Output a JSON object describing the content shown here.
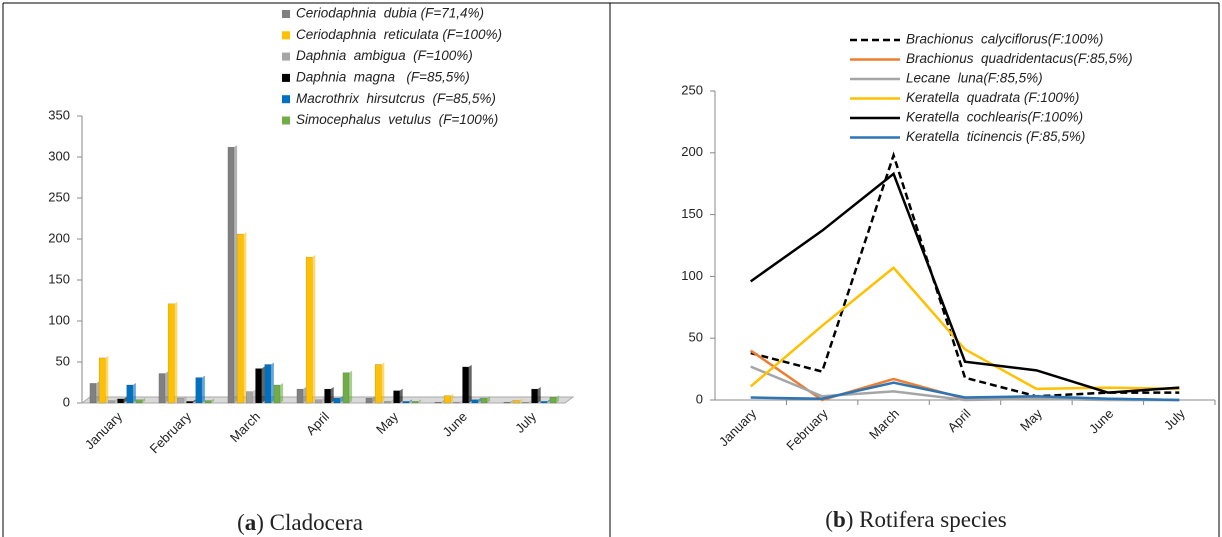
{
  "chart_data": [
    {
      "type": "bar",
      "caption": [
        "(",
        "a",
        ") Cladocera"
      ],
      "caption_bold": 1,
      "categories": [
        "January",
        "February",
        "March",
        "April",
        "May",
        "June",
        "July"
      ],
      "ylim": [
        0,
        350
      ],
      "yticks": [
        0,
        50,
        100,
        150,
        200,
        250,
        300,
        350
      ],
      "grid": false,
      "legend": "top-right",
      "series": [
        {
          "name": "Ceriodaphnia  dubia (F=71,4%)",
          "color": "#808080",
          "values": [
            24,
            36,
            312,
            17,
            6,
            1,
            1
          ]
        },
        {
          "name": "Ceriodaphnia  reticulata (F=100%)",
          "color": "#ffc000",
          "values": [
            55,
            121,
            206,
            178,
            47,
            9,
            3
          ]
        },
        {
          "name": "Daphnia  ambigua  (F=100%)",
          "color": "#a5a5a5",
          "values": [
            3,
            6,
            14,
            4,
            2,
            1,
            1
          ]
        },
        {
          "name": "Daphnia  magna   (F=85,5%)",
          "color": "#000000",
          "values": [
            5,
            2,
            42,
            17,
            15,
            44,
            17
          ]
        },
        {
          "name": "Macrothrix  hirsutcrus  (F=85,5%)",
          "color": "#0070c0",
          "values": [
            22,
            31,
            47,
            6,
            2,
            4,
            2
          ]
        },
        {
          "name": "Simocephalus  vetulus  (F=100%)",
          "color": "#70ad47",
          "values": [
            4,
            3,
            22,
            37,
            2,
            6,
            7
          ]
        }
      ]
    },
    {
      "type": "line",
      "caption": [
        "(",
        "b",
        ") Rotifera species"
      ],
      "caption_bold": 1,
      "categories": [
        "January",
        "February",
        "March",
        "April",
        "May",
        "June",
        "July"
      ],
      "ylim": [
        0,
        250
      ],
      "yticks": [
        0,
        50,
        100,
        150,
        200,
        250
      ],
      "grid": false,
      "legend": "top-right",
      "series": [
        {
          "name": "Brachionus  calyciflorus(F:100%)",
          "color": "#000000",
          "style": "dashed",
          "values": [
            38,
            23,
            198,
            18,
            3,
            6,
            6
          ]
        },
        {
          "name": "Brachionus  quadridentacus(F:85,5%)",
          "color": "#ed7d31",
          "values": [
            40,
            0,
            17,
            1,
            2,
            1,
            0
          ]
        },
        {
          "name": "Lecane  luna(F:85,5%)",
          "color": "#a5a5a5",
          "values": [
            27,
            3,
            7,
            0,
            1,
            0,
            0
          ]
        },
        {
          "name": "Keratella  quadrata (F:100%)",
          "color": "#ffc000",
          "values": [
            11,
            60,
            107,
            41,
            9,
            10,
            9
          ]
        },
        {
          "name": "Keratella  cochlearis(F:100%)",
          "color": "#000000",
          "values": [
            96,
            137,
            183,
            31,
            24,
            6,
            10
          ]
        },
        {
          "name": "Keratella  ticinencis (F:85,5%)",
          "color": "#2e75b6",
          "values": [
            2,
            1,
            14,
            2,
            3,
            1,
            0
          ]
        }
      ]
    }
  ]
}
